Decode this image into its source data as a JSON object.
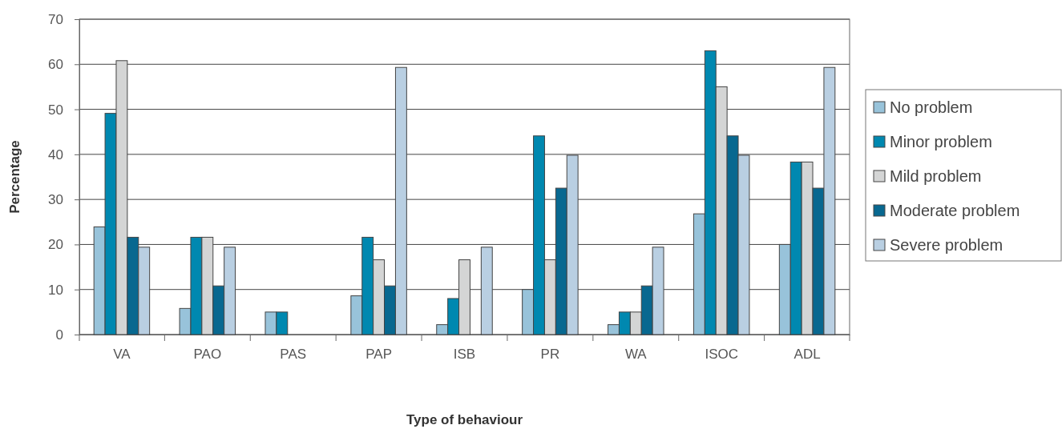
{
  "chart_data": {
    "type": "bar",
    "xlabel": "Type of behaviour",
    "ylabel": "Percentage",
    "categories": [
      "VA",
      "PAO",
      "PAS",
      "PAP",
      "ISB",
      "PR",
      "WA",
      "ISOC",
      "ADL"
    ],
    "series": [
      {
        "name": "No problem",
        "color": "#98c3da",
        "values": [
          23.9,
          5.8,
          5.0,
          8.6,
          2.2,
          10.0,
          2.2,
          26.8,
          20.0
        ]
      },
      {
        "name": "Minor problem",
        "color": "#0088b0",
        "values": [
          49.1,
          21.6,
          5.0,
          21.6,
          8.0,
          44.1,
          5.0,
          63.0,
          38.3
        ]
      },
      {
        "name": "Mild problem",
        "color": "#d4d5d5",
        "values": [
          60.8,
          21.6,
          0,
          16.6,
          16.6,
          16.6,
          5.0,
          55.0,
          38.3
        ]
      },
      {
        "name": "Moderate problem",
        "color": "#086890",
        "values": [
          21.6,
          10.8,
          0,
          10.8,
          0,
          32.5,
          10.8,
          44.1,
          32.5
        ]
      },
      {
        "name": "Severe problem",
        "color": "#b9cfe2",
        "values": [
          19.4,
          19.4,
          0,
          59.3,
          19.4,
          39.8,
          19.4,
          39.8,
          59.3
        ]
      }
    ],
    "ylim": [
      0,
      70
    ],
    "yticks": [
      0,
      10,
      20,
      30,
      40,
      50,
      60,
      70
    ],
    "grid": "y",
    "legend": "right"
  }
}
